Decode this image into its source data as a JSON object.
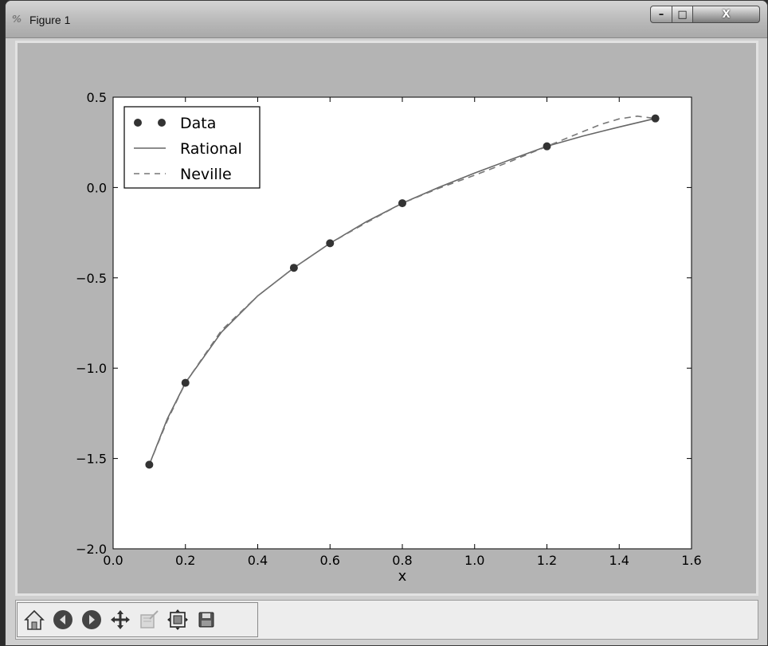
{
  "window": {
    "title": "Figure 1",
    "buttons": {
      "minimize": "–",
      "maximize": "□",
      "close": "X"
    }
  },
  "toolbar": {
    "items": [
      {
        "icon": "home-icon"
      },
      {
        "icon": "back-arrow-icon"
      },
      {
        "icon": "forward-arrow-icon"
      },
      {
        "icon": "pan-move-icon"
      },
      {
        "icon": "zoom-rect-icon"
      },
      {
        "icon": "subplots-config-icon"
      },
      {
        "icon": "save-disk-icon"
      }
    ]
  },
  "chart_data": {
    "type": "line",
    "xlabel": "x",
    "ylabel": "",
    "title": "",
    "xlim": [
      0.0,
      1.6
    ],
    "ylim": [
      -2.0,
      0.5
    ],
    "xticks": [
      "0.0",
      "0.2",
      "0.4",
      "0.6",
      "0.8",
      "1.0",
      "1.2",
      "1.4",
      "1.6"
    ],
    "yticks": [
      "0.5",
      "0.0",
      "−0.5",
      "−1.0",
      "−1.5",
      "−2.0"
    ],
    "grid": false,
    "legend": "top-left",
    "series": [
      {
        "name": "Data",
        "style": "markers",
        "color": "#333333",
        "x": [
          0.1,
          0.2,
          0.5,
          0.6,
          0.8,
          1.2,
          1.5
        ],
        "y": [
          -1.5342,
          -1.0811,
          -0.4445,
          -0.3085,
          -0.0868,
          0.2281,
          0.3824
        ]
      },
      {
        "name": "Rational",
        "style": "solid",
        "color": "#666666",
        "x": [
          0.1,
          0.15,
          0.2,
          0.3,
          0.4,
          0.5,
          0.6,
          0.7,
          0.8,
          0.9,
          1.0,
          1.1,
          1.2,
          1.3,
          1.4,
          1.5
        ],
        "y": [
          -1.5342,
          -1.28,
          -1.0811,
          -0.8,
          -0.6,
          -0.4445,
          -0.3085,
          -0.19,
          -0.0868,
          0.0,
          0.08,
          0.155,
          0.2281,
          0.285,
          0.335,
          0.3824
        ]
      },
      {
        "name": "Neville",
        "style": "dashed",
        "color": "#777777",
        "x": [
          0.1,
          0.15,
          0.2,
          0.3,
          0.4,
          0.5,
          0.6,
          0.7,
          0.8,
          0.9,
          1.0,
          1.1,
          1.2,
          1.3,
          1.35,
          1.4,
          1.45,
          1.5
        ],
        "y": [
          -1.5342,
          -1.29,
          -1.0811,
          -0.79,
          -0.6,
          -0.4445,
          -0.3085,
          -0.195,
          -0.0868,
          -0.005,
          0.068,
          0.145,
          0.2281,
          0.31,
          0.35,
          0.38,
          0.395,
          0.3824
        ]
      }
    ]
  }
}
